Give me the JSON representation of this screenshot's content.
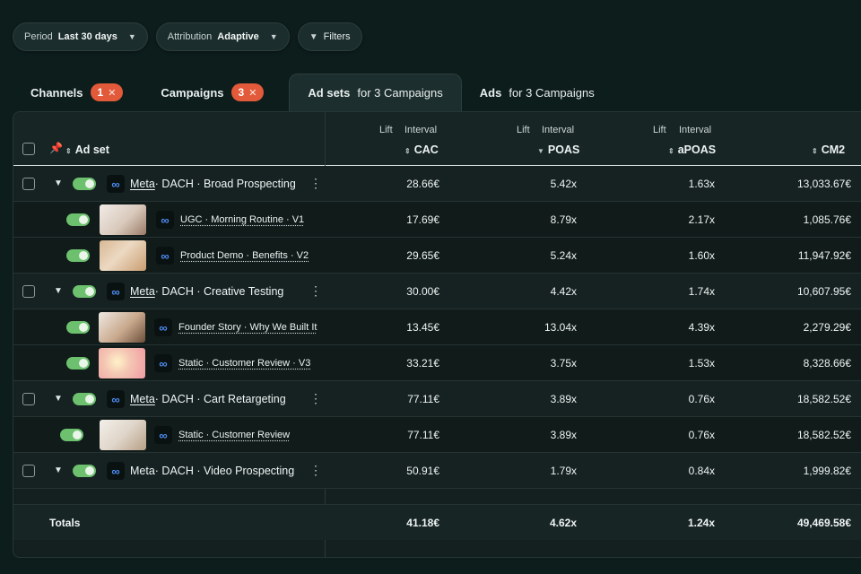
{
  "filters": {
    "period_label": "Period",
    "period_value": "Last 30 days",
    "attribution_label": "Attribution",
    "attribution_value": "Adaptive",
    "filters_label": "Filters"
  },
  "tabs": [
    {
      "label": "Channels",
      "badge": "1"
    },
    {
      "label": "Campaigns",
      "badge": "3"
    },
    {
      "label": "Ad sets",
      "suffix": "for 3 Campaigns"
    },
    {
      "label": "Ads",
      "suffix": "for 3 Campaigns"
    }
  ],
  "table": {
    "headers": {
      "adset": "Ad set",
      "lift": "Lift",
      "interval": "Interval",
      "cac": "CAC",
      "poas": "POAS",
      "apoas": "aPOAS",
      "cm2": "CM2"
    },
    "rows": [
      {
        "kind": "parent",
        "platform": "Meta",
        "name": " · DACH · Broad Prospecting",
        "cac": "28.66€",
        "poas": "5.42x",
        "apoas": "1.63x",
        "cm2": "13,033.67€"
      },
      {
        "kind": "child",
        "name": "UGC · Morning Routine · V1",
        "cac": "17.69€",
        "poas": "8.79x",
        "apoas": "2.17x",
        "cm2": "1,085.76€"
      },
      {
        "kind": "child",
        "name": "Product Demo · Benefits · V2",
        "cac": "29.65€",
        "poas": "5.24x",
        "apoas": "1.60x",
        "cm2": "11,947.92€"
      },
      {
        "kind": "parent",
        "platform": "Meta",
        "name": " · DACH · Creative Testing",
        "cac": "30.00€",
        "poas": "4.42x",
        "apoas": "1.74x",
        "cm2": "10,607.95€"
      },
      {
        "kind": "child",
        "name": "Founder Story · Why We Built It",
        "cac": "13.45€",
        "poas": "13.04x",
        "apoas": "4.39x",
        "cm2": "2,279.29€"
      },
      {
        "kind": "child",
        "name": "Static · Customer Review · V3",
        "cac": "33.21€",
        "poas": "3.75x",
        "apoas": "1.53x",
        "cm2": "8,328.66€"
      },
      {
        "kind": "parent",
        "platform": "Meta",
        "name": " · DACH · Cart Retargeting",
        "cac": "77.11€",
        "poas": "3.89x",
        "apoas": "0.76x",
        "cm2": "18,582.52€"
      },
      {
        "kind": "child",
        "name": "Static · Customer Review",
        "cac": "77.11€",
        "poas": "3.89x",
        "apoas": "0.76x",
        "cm2": "18,582.52€"
      },
      {
        "kind": "parent",
        "platform": "Meta",
        "name": " · DACH · Video Prospecting",
        "cac": "50.91€",
        "poas": "1.79x",
        "apoas": "0.84x",
        "cm2": "1,999.82€"
      }
    ],
    "totals": {
      "label": "Totals",
      "cac": "41.18€",
      "poas": "4.62x",
      "apoas": "1.24x",
      "cm2": "49,469.58€"
    }
  },
  "colors": {
    "accent_badge": "#e25a3a",
    "toggle_on": "#6cc06e",
    "meta_blue": "#4f8df5"
  }
}
